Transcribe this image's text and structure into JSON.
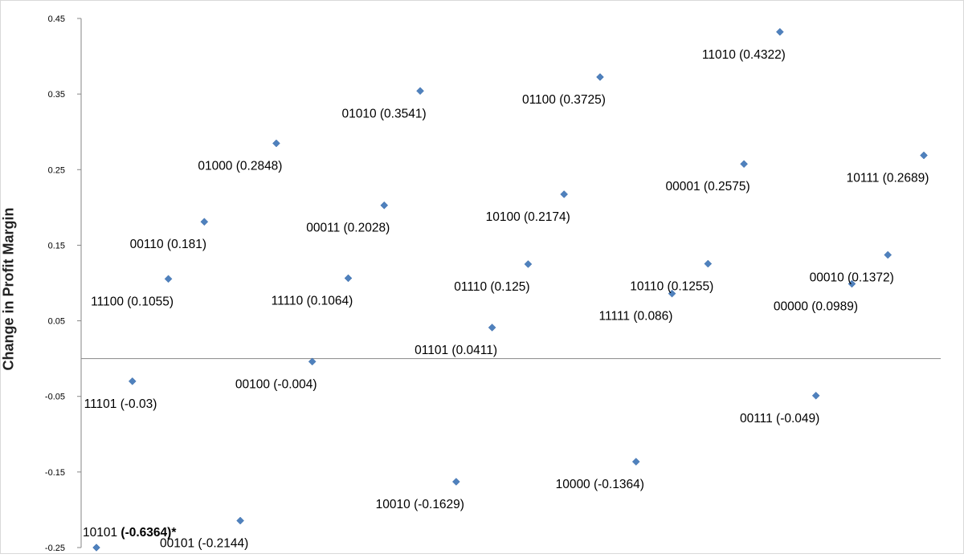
{
  "chart_data": {
    "type": "scatter",
    "title": "",
    "xlabel": "",
    "ylabel": "Change in Profit Margin",
    "ylim": [
      -0.25,
      0.45
    ],
    "y_ticks": [
      "0.45",
      "0.35",
      "0.25",
      "0.15",
      "0.05",
      "-0.05",
      "-0.15",
      "-0.25"
    ],
    "grid": false,
    "legend": "none",
    "marker_color": "#4F81BD",
    "points": [
      {
        "index": 1,
        "code": "10101",
        "y": -0.25,
        "label": "10101",
        "value_text": "(-0.6364)*",
        "bold": true
      },
      {
        "index": 2,
        "code": "11101",
        "y": -0.03,
        "label": "11101 (-0.03)"
      },
      {
        "index": 3,
        "code": "11100",
        "y": 0.1055,
        "label": "11100 (0.1055)"
      },
      {
        "index": 4,
        "code": "00110",
        "y": 0.181,
        "label": "00110 (0.181)"
      },
      {
        "index": 5,
        "code": "00101",
        "y": -0.2144,
        "label": "00101 (-0.2144)"
      },
      {
        "index": 6,
        "code": "01000",
        "y": 0.2848,
        "label": "01000 (0.2848)"
      },
      {
        "index": 7,
        "code": "00100",
        "y": -0.004,
        "label": "00100 (-0.004)"
      },
      {
        "index": 8,
        "code": "11110",
        "y": 0.1064,
        "label": "11110 (0.1064)"
      },
      {
        "index": 9,
        "code": "00011",
        "y": 0.2028,
        "label": "00011 (0.2028)"
      },
      {
        "index": 10,
        "code": "01010",
        "y": 0.3541,
        "label": "01010 (0.3541)"
      },
      {
        "index": 11,
        "code": "10010",
        "y": -0.1629,
        "label": "10010 (-0.1629)"
      },
      {
        "index": 12,
        "code": "01101",
        "y": 0.0411,
        "label": "01101 (0.0411)"
      },
      {
        "index": 13,
        "code": "01110",
        "y": 0.125,
        "label": "01110 (0.125)"
      },
      {
        "index": 14,
        "code": "10100",
        "y": 0.2174,
        "label": "10100 (0.2174)"
      },
      {
        "index": 15,
        "code": "01100",
        "y": 0.3725,
        "label": "01100 (0.3725)"
      },
      {
        "index": 16,
        "code": "10000",
        "y": -0.1364,
        "label": "10000 (-0.1364)"
      },
      {
        "index": 17,
        "code": "11111",
        "y": 0.086,
        "label": "11111 (0.086)"
      },
      {
        "index": 18,
        "code": "10110",
        "y": 0.1255,
        "label": "10110 (0.1255)"
      },
      {
        "index": 19,
        "code": "00001",
        "y": 0.2575,
        "label": "00001 (0.2575)"
      },
      {
        "index": 20,
        "code": "11010",
        "y": 0.4322,
        "label": "11010 (0.4322)"
      },
      {
        "index": 21,
        "code": "00111",
        "y": -0.049,
        "label": "00111 (-0.049)"
      },
      {
        "index": 22,
        "code": "00000",
        "y": 0.0989,
        "label": "00000 (0.0989)"
      },
      {
        "index": 23,
        "code": "00010",
        "y": 0.1372,
        "label": "00010 (0.1372)"
      },
      {
        "index": 24,
        "code": "10111",
        "y": 0.2689,
        "label": "10111 (0.2689)"
      }
    ]
  }
}
